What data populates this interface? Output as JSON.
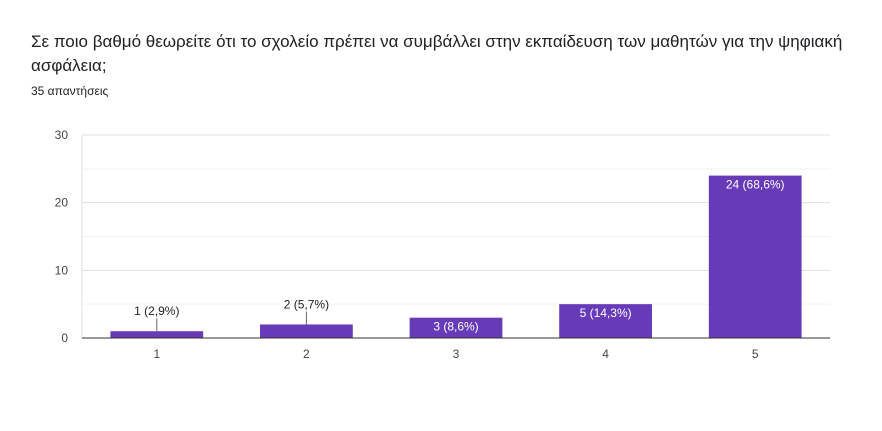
{
  "question": {
    "title": "Σε ποιο βαθμό θεωρείτε ότι το σχολείο πρέπει να συμβάλλει στην εκπαίδευση των μαθητών για την ψηφιακή ασφάλεια;",
    "responses": "35 απαντήσεις"
  },
  "chart_data": {
    "type": "bar",
    "title": "",
    "xlabel": "",
    "ylabel": "",
    "categories": [
      "1",
      "2",
      "3",
      "4",
      "5"
    ],
    "values": [
      1,
      2,
      3,
      5,
      24
    ],
    "data_labels": [
      "1 (2,9%)",
      "2 (5,7%)",
      "3 (8,6%)",
      "5 (14,3%)",
      "24 (68,6%)"
    ],
    "ylim": [
      0,
      30
    ],
    "yticks": [
      0,
      10,
      20,
      30
    ],
    "grid": true,
    "legend": "none",
    "bar_color": "#673ab7"
  }
}
